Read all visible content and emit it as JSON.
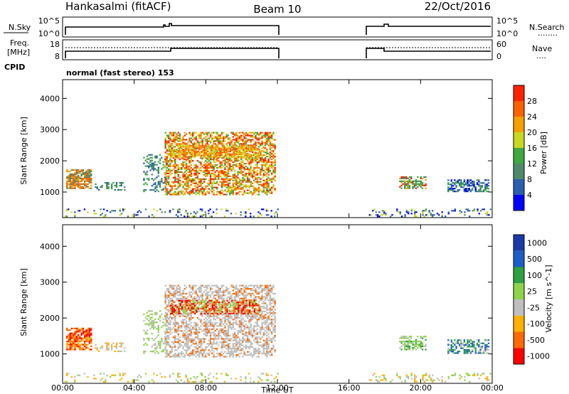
{
  "header": {
    "station": "Hankasalmi (fitACF)",
    "beam": "Beam 10",
    "date": "22/Oct/2016"
  },
  "nsky_panel": {
    "left_label": "N.Sky",
    "left_ticks": [
      "10^5",
      "10^0"
    ],
    "right_label": "N.Search",
    "right_ticks": [
      "10^5",
      "10^0"
    ],
    "right_legend": "........"
  },
  "freq_panel": {
    "left_label_1": "Freq.",
    "left_label_2": "[MHz]",
    "left_ticks": [
      "18",
      "8"
    ],
    "right_label": "Nave",
    "right_ticks": [
      "60",
      "0"
    ],
    "right_legend": "....",
    "cpid_label": "CPID"
  },
  "mode": {
    "label": "normal (fast stereo) 153"
  },
  "colors": {
    "power": [
      "#0000ff",
      "#2a5fb0",
      "#4e8a6a",
      "#3fa83f",
      "#c8d820",
      "#f5a000",
      "#ff6000",
      "#ff2000"
    ],
    "velocity": [
      "#ff0000",
      "#ff6a00",
      "#ffb000",
      "#bebebe",
      "#8ed44a",
      "#2ea040",
      "#1c5ec8",
      "#1a3aa8"
    ]
  },
  "chart_data": [
    {
      "type": "heatmap",
      "name": "power",
      "ylabel": "Slant Range [km]",
      "ylim": [
        180,
        4600
      ],
      "yticks": [
        1000,
        2000,
        3000,
        4000
      ],
      "xlim": [
        0,
        24
      ],
      "colorbar_label": "Power [dB]",
      "colorbar_ticks": [
        "4",
        "8",
        "12",
        "16",
        "20",
        "24",
        "28"
      ],
      "data_gaps_hours": [
        [
          12.0,
          17.0
        ]
      ]
    },
    {
      "type": "heatmap",
      "name": "velocity",
      "ylabel": "Slant Range [km]",
      "ylim": [
        180,
        4600
      ],
      "yticks": [
        1000,
        2000,
        3000,
        4000
      ],
      "xlim": [
        0,
        24
      ],
      "colorbar_label": "Velocity [m s^-1]",
      "colorbar_ticks": [
        "1000",
        "500",
        "100",
        "25",
        "-25",
        "-100",
        "-500",
        "-1000"
      ],
      "data_gaps_hours": [
        [
          12.0,
          17.0
        ]
      ]
    }
  ],
  "time_axis": {
    "ticks": [
      "00:00",
      "04:00",
      "08:00",
      "12:00",
      "16:00",
      "20:00",
      "00:00"
    ],
    "label": "Time UT"
  }
}
